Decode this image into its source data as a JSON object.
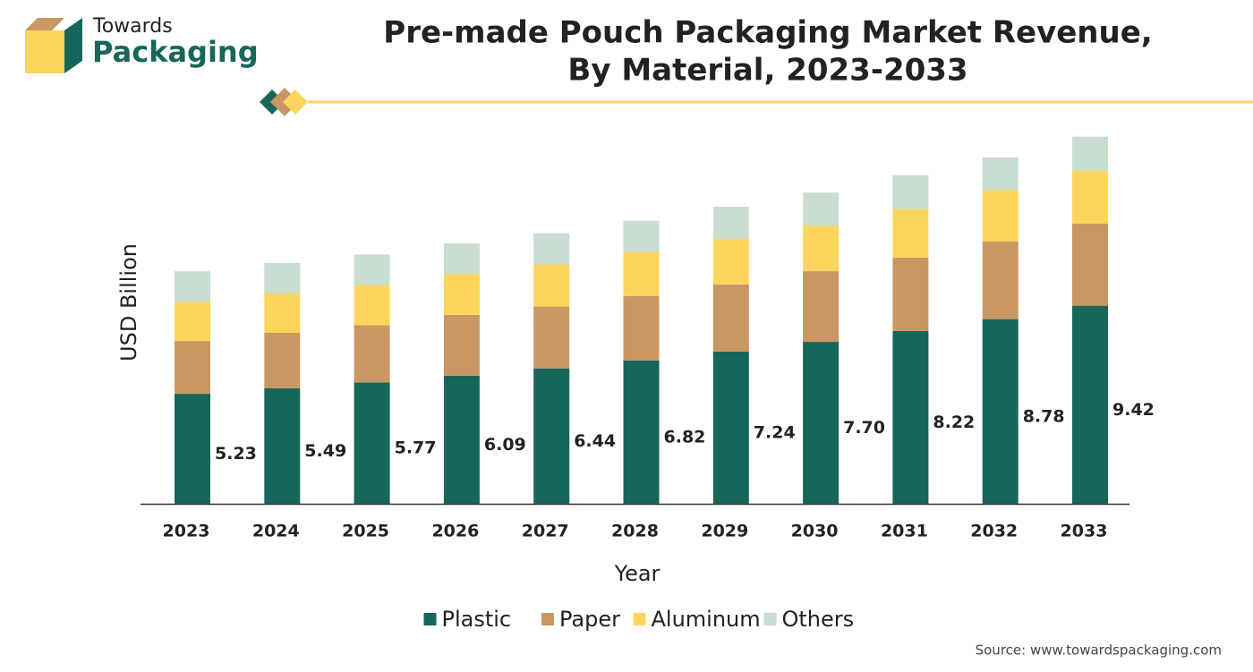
{
  "brand": {
    "line1": "Towards",
    "line2": "Packaging"
  },
  "chart_data": {
    "type": "stacked_bar",
    "title": "Pre-made Pouch Packaging Market Revenue,",
    "subtitle": "By Material, 2023-2033",
    "y_label": "USD Billion",
    "x_label": "Year",
    "source": "Source: www.towardspackaging.com",
    "categories": [
      "2023",
      "2024",
      "2025",
      "2026",
      "2027",
      "2028",
      "2029",
      "2030",
      "2031",
      "2032",
      "2033"
    ],
    "series": [
      {
        "name": "Plastic",
        "color": "#17665a",
        "values": [
          5.23,
          5.49,
          5.77,
          6.09,
          6.44,
          6.82,
          7.24,
          7.7,
          8.22,
          8.78,
          9.42
        ],
        "value_labels": [
          "5.23",
          "5.49",
          "5.77",
          "6.09",
          "6.44",
          "6.82",
          "7.24",
          "7.70",
          "8.22",
          "8.78",
          "9.42"
        ]
      },
      {
        "name": "Paper",
        "color": "#c99763",
        "values": [
          2.51,
          2.64,
          2.72,
          2.89,
          2.94,
          3.06,
          3.19,
          3.36,
          3.49,
          3.7,
          3.91
        ]
      },
      {
        "name": "Aluminum",
        "color": "#fcd55d",
        "values": [
          1.87,
          1.87,
          1.91,
          1.96,
          2.0,
          2.09,
          2.17,
          2.17,
          2.3,
          2.43,
          2.51
        ]
      },
      {
        "name": "Others",
        "color": "#c9ddd0",
        "values": [
          1.45,
          1.45,
          1.45,
          1.45,
          1.49,
          1.49,
          1.53,
          1.57,
          1.62,
          1.57,
          1.62
        ]
      }
    ],
    "ylim": [
      0,
      18
    ]
  }
}
